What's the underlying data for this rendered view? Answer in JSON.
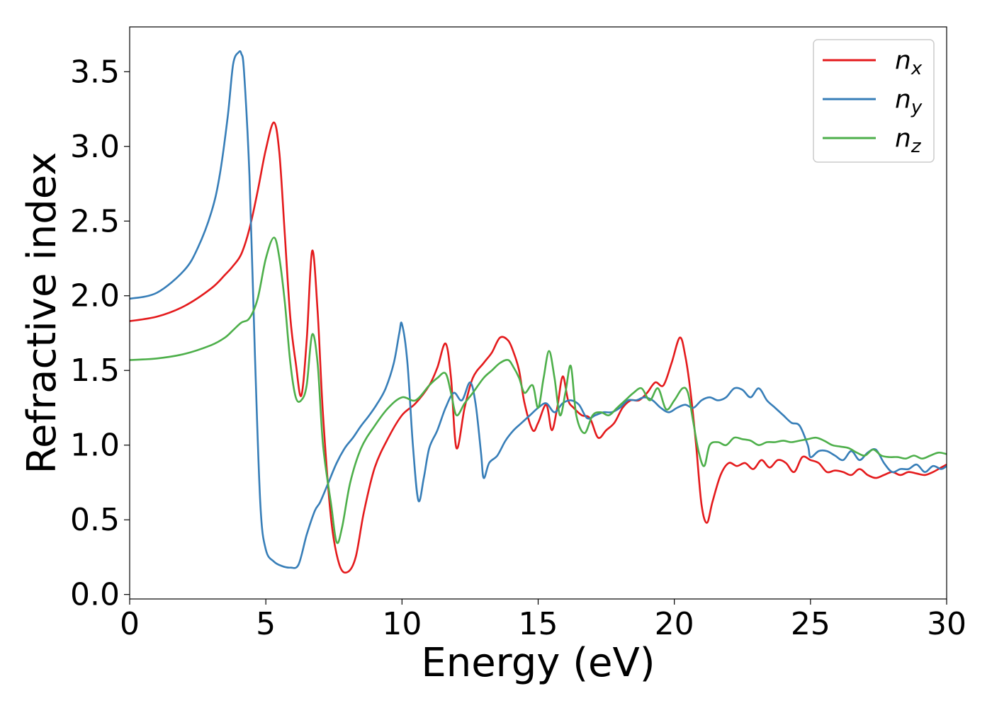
{
  "chart_data": {
    "type": "line",
    "xlabel": "Energy (eV)",
    "ylabel": "Refractive index",
    "xlim": [
      0,
      30
    ],
    "ylim": [
      -0.03,
      3.8
    ],
    "xticks": [
      0,
      5,
      10,
      15,
      20,
      25,
      30
    ],
    "xtick_labels": [
      "0",
      "5",
      "10",
      "15",
      "20",
      "25",
      "30"
    ],
    "yticks": [
      0.0,
      0.5,
      1.0,
      1.5,
      2.0,
      2.5,
      3.0,
      3.5
    ],
    "ytick_labels": [
      "0.0",
      "0.5",
      "1.0",
      "1.5",
      "2.0",
      "2.5",
      "3.0",
      "3.5"
    ],
    "grid": false,
    "legend_position": "top-right",
    "series": [
      {
        "name_base": "n",
        "name_sub": "x",
        "color": "#e41a1c",
        "x": [
          0,
          1,
          2,
          3,
          3.5,
          3.8,
          4.1,
          4.4,
          4.7,
          5.0,
          5.3,
          5.5,
          5.7,
          5.9,
          6.1,
          6.3,
          6.5,
          6.7,
          6.9,
          7.1,
          7.4,
          7.7,
          8.0,
          8.3,
          8.6,
          9.0,
          9.5,
          10.0,
          10.5,
          11.0,
          11.3,
          11.6,
          11.8,
          12.0,
          12.3,
          12.6,
          13.0,
          13.3,
          13.6,
          13.9,
          14.1,
          14.3,
          14.5,
          14.8,
          15.0,
          15.3,
          15.5,
          15.7,
          15.9,
          16.1,
          16.3,
          16.6,
          16.9,
          17.2,
          17.5,
          17.8,
          18.1,
          18.4,
          18.7,
          19.0,
          19.3,
          19.6,
          19.9,
          20.2,
          20.4,
          20.6,
          20.8,
          21.0,
          21.2,
          21.4,
          21.7,
          22.0,
          22.3,
          22.6,
          22.9,
          23.2,
          23.5,
          23.8,
          24.1,
          24.4,
          24.7,
          25.0,
          25.3,
          25.6,
          25.9,
          26.2,
          26.5,
          26.8,
          27.1,
          27.4,
          27.7,
          28.0,
          28.3,
          28.6,
          28.9,
          29.2,
          29.5,
          29.8,
          30.0
        ],
        "values": [
          1.83,
          1.86,
          1.93,
          2.05,
          2.14,
          2.2,
          2.28,
          2.45,
          2.7,
          2.98,
          3.16,
          2.95,
          2.4,
          1.85,
          1.55,
          1.33,
          1.7,
          2.3,
          1.9,
          1.2,
          0.5,
          0.2,
          0.15,
          0.25,
          0.55,
          0.85,
          1.05,
          1.2,
          1.28,
          1.4,
          1.52,
          1.68,
          1.45,
          0.98,
          1.25,
          1.45,
          1.55,
          1.62,
          1.72,
          1.7,
          1.62,
          1.5,
          1.28,
          1.1,
          1.15,
          1.27,
          1.1,
          1.25,
          1.46,
          1.3,
          1.25,
          1.2,
          1.18,
          1.05,
          1.1,
          1.15,
          1.25,
          1.3,
          1.3,
          1.35,
          1.42,
          1.4,
          1.55,
          1.72,
          1.6,
          1.35,
          1.0,
          0.6,
          0.48,
          0.62,
          0.8,
          0.88,
          0.86,
          0.88,
          0.84,
          0.9,
          0.85,
          0.9,
          0.88,
          0.82,
          0.92,
          0.9,
          0.88,
          0.82,
          0.83,
          0.82,
          0.8,
          0.84,
          0.8,
          0.78,
          0.8,
          0.82,
          0.8,
          0.82,
          0.81,
          0.8,
          0.82,
          0.85,
          0.87
        ]
      },
      {
        "name_base": "n",
        "name_sub": "y",
        "color": "#377eb8",
        "x": [
          0,
          1,
          2,
          2.5,
          3.0,
          3.3,
          3.6,
          3.8,
          4.0,
          4.1,
          4.2,
          4.4,
          4.6,
          4.8,
          5.0,
          5.3,
          5.6,
          5.9,
          6.2,
          6.5,
          6.8,
          7.0,
          7.3,
          7.6,
          7.9,
          8.2,
          8.5,
          8.8,
          9.1,
          9.4,
          9.7,
          9.9,
          10.0,
          10.2,
          10.4,
          10.6,
          10.8,
          11.0,
          11.3,
          11.6,
          11.9,
          12.2,
          12.5,
          12.7,
          12.9,
          13.0,
          13.2,
          13.5,
          13.8,
          14.1,
          14.4,
          14.7,
          15.0,
          15.3,
          15.6,
          15.9,
          16.2,
          16.5,
          16.8,
          17.1,
          17.4,
          17.7,
          18.0,
          18.3,
          18.6,
          18.9,
          19.2,
          19.5,
          19.8,
          20.1,
          20.4,
          20.7,
          21.0,
          21.3,
          21.6,
          21.9,
          22.2,
          22.5,
          22.8,
          23.1,
          23.4,
          23.7,
          24.0,
          24.3,
          24.6,
          24.9,
          25.0,
          25.3,
          25.6,
          25.9,
          26.2,
          26.5,
          26.8,
          27.1,
          27.4,
          27.7,
          28.0,
          28.3,
          28.6,
          28.9,
          29.2,
          29.5,
          29.8,
          30.0
        ],
        "values": [
          1.98,
          2.02,
          2.17,
          2.32,
          2.56,
          2.8,
          3.2,
          3.55,
          3.63,
          3.62,
          3.5,
          2.8,
          1.6,
          0.6,
          0.3,
          0.22,
          0.19,
          0.18,
          0.2,
          0.4,
          0.56,
          0.62,
          0.75,
          0.88,
          0.98,
          1.05,
          1.13,
          1.2,
          1.28,
          1.38,
          1.55,
          1.75,
          1.81,
          1.55,
          1.0,
          0.63,
          0.78,
          0.98,
          1.1,
          1.25,
          1.35,
          1.3,
          1.42,
          1.28,
          0.95,
          0.78,
          0.88,
          0.93,
          1.03,
          1.1,
          1.15,
          1.2,
          1.25,
          1.28,
          1.22,
          1.28,
          1.3,
          1.27,
          1.18,
          1.2,
          1.22,
          1.22,
          1.25,
          1.3,
          1.3,
          1.32,
          1.3,
          1.25,
          1.22,
          1.25,
          1.27,
          1.25,
          1.3,
          1.32,
          1.3,
          1.32,
          1.38,
          1.37,
          1.32,
          1.38,
          1.3,
          1.25,
          1.2,
          1.15,
          1.13,
          1.0,
          0.92,
          0.96,
          0.96,
          0.93,
          0.9,
          0.96,
          0.9,
          0.95,
          0.97,
          0.88,
          0.82,
          0.84,
          0.84,
          0.87,
          0.82,
          0.86,
          0.84,
          0.86
        ]
      },
      {
        "name_base": "n",
        "name_sub": "z",
        "color": "#4daf4a",
        "x": [
          0,
          1,
          2,
          3,
          3.5,
          3.8,
          4.1,
          4.4,
          4.7,
          5.0,
          5.3,
          5.5,
          5.7,
          5.9,
          6.1,
          6.3,
          6.5,
          6.7,
          6.9,
          7.1,
          7.4,
          7.6,
          7.8,
          8.1,
          8.5,
          9.0,
          9.5,
          10.0,
          10.5,
          11.0,
          11.3,
          11.6,
          11.8,
          12.0,
          12.3,
          12.6,
          13.0,
          13.3,
          13.6,
          13.9,
          14.1,
          14.3,
          14.5,
          14.8,
          15.0,
          15.2,
          15.4,
          15.6,
          15.8,
          16.0,
          16.2,
          16.4,
          16.7,
          17.0,
          17.3,
          17.6,
          17.9,
          18.2,
          18.5,
          18.8,
          19.1,
          19.4,
          19.7,
          20.0,
          20.3,
          20.5,
          20.7,
          20.9,
          21.1,
          21.3,
          21.6,
          21.9,
          22.2,
          22.5,
          22.8,
          23.1,
          23.4,
          23.7,
          24.0,
          24.3,
          24.6,
          24.9,
          25.2,
          25.5,
          25.8,
          26.1,
          26.4,
          26.7,
          27.0,
          27.3,
          27.6,
          27.9,
          28.2,
          28.5,
          28.8,
          29.1,
          29.4,
          29.7,
          30.0
        ],
        "values": [
          1.57,
          1.58,
          1.61,
          1.67,
          1.72,
          1.77,
          1.82,
          1.85,
          1.98,
          2.25,
          2.39,
          2.25,
          1.95,
          1.55,
          1.32,
          1.3,
          1.4,
          1.74,
          1.55,
          1.0,
          0.6,
          0.35,
          0.45,
          0.75,
          0.98,
          1.13,
          1.25,
          1.32,
          1.3,
          1.4,
          1.45,
          1.48,
          1.35,
          1.2,
          1.28,
          1.35,
          1.45,
          1.5,
          1.55,
          1.57,
          1.52,
          1.45,
          1.35,
          1.4,
          1.25,
          1.45,
          1.63,
          1.45,
          1.2,
          1.35,
          1.53,
          1.2,
          1.08,
          1.2,
          1.22,
          1.2,
          1.25,
          1.3,
          1.35,
          1.38,
          1.3,
          1.38,
          1.24,
          1.3,
          1.38,
          1.35,
          1.15,
          0.95,
          0.86,
          1.0,
          1.02,
          1.0,
          1.05,
          1.04,
          1.03,
          1.0,
          1.02,
          1.02,
          1.03,
          1.02,
          1.03,
          1.04,
          1.05,
          1.03,
          1.0,
          0.99,
          0.98,
          0.95,
          0.93,
          0.97,
          0.93,
          0.92,
          0.92,
          0.91,
          0.93,
          0.91,
          0.93,
          0.95,
          0.94
        ]
      }
    ]
  }
}
